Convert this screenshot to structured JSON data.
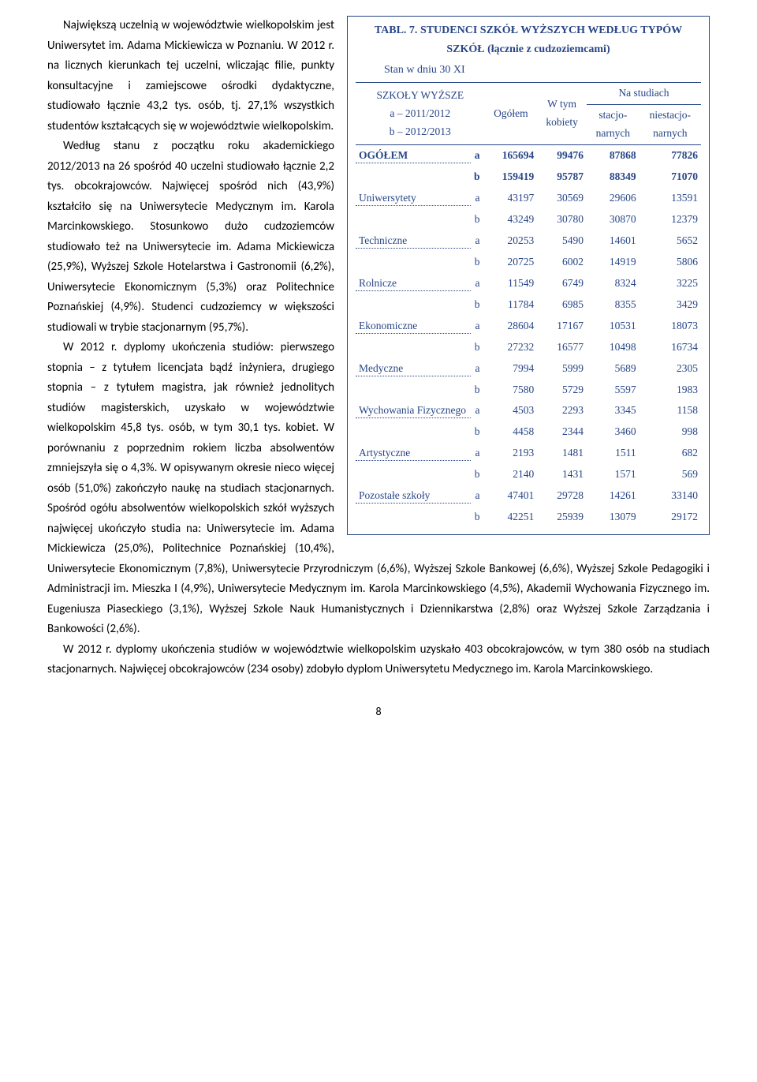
{
  "table": {
    "label": "TABL. 7.",
    "title": "STUDENCI SZKÓŁ WYŻSZYCH WEDŁUG TYPÓW SZKÓŁ (łącznie z cudzoziemcami)",
    "subtitle": "Stan w dniu 30 XI",
    "header": {
      "col1_l1": "SZKOŁY WYŻSZE",
      "col1_l2": "a – 2011/2012",
      "col1_l3": "b – 2012/2013",
      "col2": "Ogółem",
      "col3": "W tym kobiety",
      "col4_top": "Na studiach",
      "col4a": "stacjo-\nnarnych",
      "col4b": "niestacjo-\nnarnych"
    },
    "rows": [
      {
        "label": "OGÓŁEM",
        "bold": true,
        "a": [
          "165694",
          "99476",
          "87868",
          "77826"
        ],
        "b": [
          "159419",
          "95787",
          "88349",
          "71070"
        ]
      },
      {
        "label": "Uniwersytety",
        "a": [
          "43197",
          "30569",
          "29606",
          "13591"
        ],
        "b": [
          "43249",
          "30780",
          "30870",
          "12379"
        ]
      },
      {
        "label": "Techniczne",
        "a": [
          "20253",
          "5490",
          "14601",
          "5652"
        ],
        "b": [
          "20725",
          "6002",
          "14919",
          "5806"
        ]
      },
      {
        "label": "Rolnicze",
        "a": [
          "11549",
          "6749",
          "8324",
          "3225"
        ],
        "b": [
          "11784",
          "6985",
          "8355",
          "3429"
        ]
      },
      {
        "label": "Ekonomiczne",
        "a": [
          "28604",
          "17167",
          "10531",
          "18073"
        ],
        "b": [
          "27232",
          "16577",
          "10498",
          "16734"
        ]
      },
      {
        "label": "Medyczne",
        "a": [
          "7994",
          "5999",
          "5689",
          "2305"
        ],
        "b": [
          "7580",
          "5729",
          "5597",
          "1983"
        ]
      },
      {
        "label": "Wychowania Fizycznego",
        "a": [
          "4503",
          "2293",
          "3345",
          "1158"
        ],
        "b": [
          "4458",
          "2344",
          "3460",
          "998"
        ]
      },
      {
        "label": "Artystyczne",
        "a": [
          "2193",
          "1481",
          "1511",
          "682"
        ],
        "b": [
          "2140",
          "1431",
          "1571",
          "569"
        ]
      },
      {
        "label": "Pozostałe szkoły",
        "a": [
          "47401",
          "29728",
          "14261",
          "33140"
        ],
        "b": [
          "42251",
          "25939",
          "13079",
          "29172"
        ]
      }
    ]
  },
  "paragraphs": {
    "p1": "Największą uczelnią w województwie wielkopolskim jest Uniwersytet im. Adama Mickiewicza w Poznaniu. W 2012 r. na licznych kierunkach tej uczelni, wliczając filie, punkty konsultacyjne i zamiejscowe ośrodki dydaktyczne, studiowało łącznie 43,2 tys. osób, tj. 27,1% wszystkich studentów kształcących się w województwie wielkopolskim.",
    "p2": "Według stanu z początku roku akademickiego 2012/2013 na 26 spośród 40 uczelni studiowało łącznie 2,2 tys. obcokrajowców. Najwięcej spośród nich (43,9%) kształciło się na Uniwersytecie Medycznym im. Karola Marcinkowskiego. Stosunkowo dużo cudzoziemców studiowało też na Uniwersytecie im. Adama Mickiewicza (25,9%), Wyższej Szkole Hotelarstwa i Gastronomii (6,2%), Uniwersytecie Ekonomicznym (5,3%) oraz Politechnice Poznańskiej (4,9%). Studenci cudzoziemcy w większości studiowali w trybie stacjonarnym (95,7%).",
    "p3": "W 2012 r. dyplomy ukończenia studiów: pierwszego stopnia – z tytułem licencjata bądź inżyniera, drugiego stopnia – z tytułem magistra, jak również jednolitych studiów magisterskich, uzyskało w województwie wielkopolskim 45,8 tys. osób, w tym 30,1 tys. kobiet. W porównaniu z poprzednim rokiem liczba absolwentów zmniejszyła się o 4,3%. W opisywanym okresie nieco więcej osób (51,0%) zakończyło naukę na studiach stacjonarnych. Spośród ogółu absolwentów wielkopolskich szkół wyższych najwięcej ukończyło studia na: Uniwersytecie im. Adama Mickiewicza (25,0%), Politechnice Poznańskiej (10,4%), Uniwersytecie Ekonomicznym (7,8%), Uniwersytecie Przyrodniczym (6,6%), Wyższej Szkole Bankowej (6,6%), Wyższej Szkole Pedagogiki i Administracji im. Mieszka I (4,9%), Uniwersytecie Medycznym im. Karola Marcinkowskiego (4,5%), Akademii Wychowania Fizycznego im. Eugeniusza Piaseckiego (3,1%), Wyższej Szkole Nauk Humanistycznych i Dziennikarstwa (2,8%) oraz Wyższej Szkole Zarządzania i Bankowości (2,6%).",
    "p4": "W 2012 r. dyplomy ukończenia studiów w województwie wielkopolskim uzyskało 403 obcokrajowców, w tym 380 osób na studiach stacjonarnych. Najwięcej obcokrajowców (234 osoby) zdobyło dyplom Uniwersytetu Medycznego im. Karola Marcinkowskiego."
  },
  "page_number": "8",
  "colors": {
    "table_border": "#284687",
    "table_text": "#284687"
  }
}
